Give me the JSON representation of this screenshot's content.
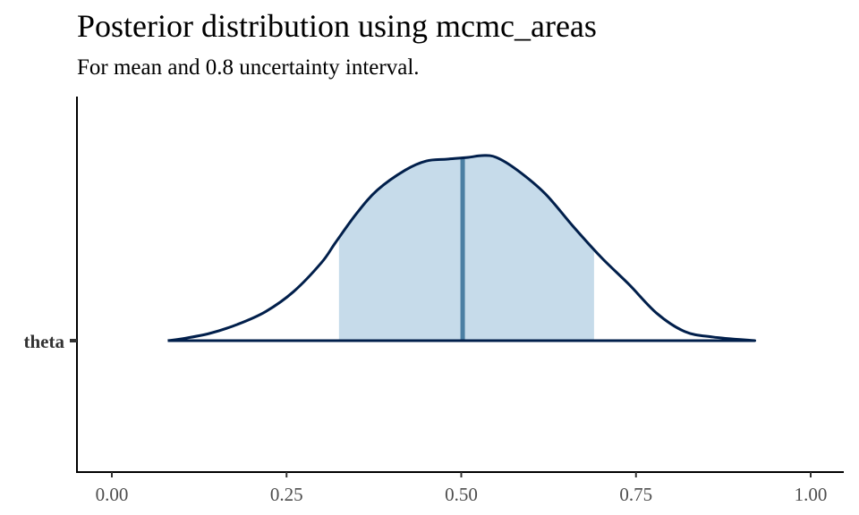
{
  "chart_data": {
    "type": "area",
    "title": "Posterior distribution using mcmc_areas",
    "subtitle": "For mean and 0.8 uncertainty interval.",
    "parameter": "theta",
    "xlim": [
      -0.05,
      1.05
    ],
    "x_ticks": [
      0,
      0.25,
      0.5,
      0.75,
      1.0
    ],
    "x_tick_labels": [
      "0.00",
      "0.25",
      "0.50",
      "0.75",
      "1.00"
    ],
    "density": {
      "x": [
        0.08,
        0.1,
        0.14,
        0.18,
        0.22,
        0.26,
        0.3,
        0.32,
        0.35,
        0.38,
        0.42,
        0.45,
        0.48,
        0.51,
        0.53,
        0.55,
        0.58,
        0.62,
        0.66,
        0.7,
        0.74,
        0.78,
        0.82,
        0.86,
        0.92
      ],
      "y": [
        0.0,
        0.01,
        0.04,
        0.09,
        0.16,
        0.27,
        0.43,
        0.54,
        0.7,
        0.83,
        0.94,
        0.99,
        1.0,
        1.01,
        1.02,
        1.01,
        0.94,
        0.81,
        0.63,
        0.46,
        0.31,
        0.15,
        0.05,
        0.02,
        0.0
      ]
    },
    "interval": {
      "low": 0.325,
      "high": 0.69,
      "prob": 0.8
    },
    "point_estimate": {
      "type": "mean",
      "value": 0.502
    },
    "colors": {
      "outline": "#011f4b",
      "interval_fill": "#c6dbea",
      "estimate_line": "#4b7fa3",
      "axis": "#000000"
    },
    "grid": false
  }
}
